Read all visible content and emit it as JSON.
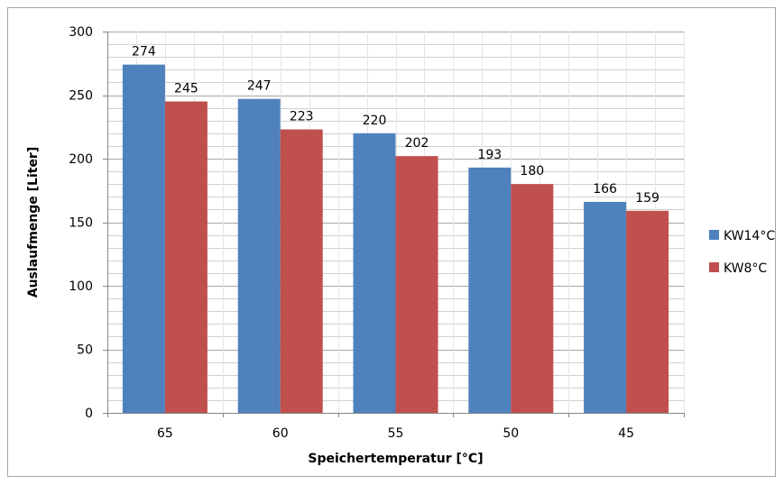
{
  "chart_data": {
    "type": "bar",
    "title": "",
    "xlabel": "Speichertemperatur  [°C]",
    "ylabel": "Auslaufmenge [Liter]",
    "categories": [
      "65",
      "60",
      "55",
      "50",
      "45"
    ],
    "series": [
      {
        "name": "KW14°C",
        "color": "#4f81bd",
        "values": [
          274,
          247,
          220,
          193,
          166
        ]
      },
      {
        "name": "KW8°C",
        "color": "#c0504d",
        "values": [
          245,
          223,
          202,
          180,
          159
        ]
      }
    ],
    "ylim": [
      0,
      300
    ],
    "y_ticks": [
      "0",
      "50",
      "100",
      "150",
      "200",
      "250",
      "300"
    ],
    "grid": true,
    "legend": "right"
  }
}
